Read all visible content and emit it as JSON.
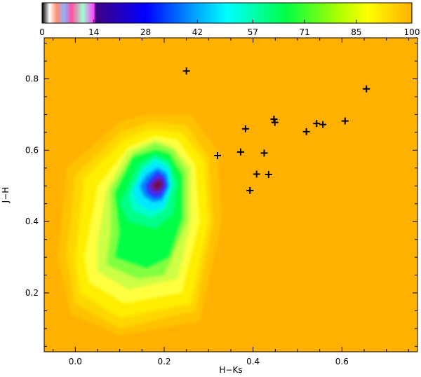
{
  "chart_data": {
    "type": "heatmap",
    "title": "",
    "xlabel": "H−Ks",
    "ylabel": "J−H",
    "xlim": [
      -0.07,
      0.77
    ],
    "ylim": [
      0.035,
      0.915
    ],
    "x_ticks": [
      "0.0",
      "0.2",
      "0.4",
      "0.6"
    ],
    "x_tick_values": [
      0.0,
      0.2,
      0.4,
      0.6
    ],
    "y_ticks": [
      "0.2",
      "0.4",
      "0.6",
      "0.8"
    ],
    "y_tick_values": [
      0.2,
      0.4,
      0.6,
      0.8
    ],
    "colorbar": {
      "range": [
        0,
        100
      ],
      "tick_labels": [
        "0",
        "14",
        "28",
        "42",
        "57",
        "71",
        "85",
        "100"
      ],
      "tick_values": [
        0,
        14,
        28,
        42,
        57,
        71,
        85,
        100
      ],
      "colors": {
        "background": "#ffb000",
        "min": "#000000",
        "blue": "#0000ff",
        "cyan": "#00ffff",
        "green": "#00ff00",
        "yellow": "#ffff00",
        "max": "#ffb000"
      }
    },
    "contour_levels": [
      {
        "level": 96,
        "color": "#ffc200",
        "path": [
          [
            0.1,
            0.68
          ],
          [
            0.16,
            0.7
          ],
          [
            0.26,
            0.7
          ],
          [
            0.32,
            0.6
          ],
          [
            0.33,
            0.4
          ],
          [
            0.28,
            0.12
          ],
          [
            0.1,
            0.08
          ],
          [
            -0.01,
            0.14
          ],
          [
            -0.04,
            0.3
          ],
          [
            -0.02,
            0.55
          ]
        ]
      },
      {
        "level": 92,
        "color": "#ffd700",
        "path": [
          [
            0.1,
            0.65
          ],
          [
            0.17,
            0.68
          ],
          [
            0.25,
            0.67
          ],
          [
            0.3,
            0.58
          ],
          [
            0.31,
            0.4
          ],
          [
            0.27,
            0.15
          ],
          [
            0.1,
            0.1
          ],
          [
            0.0,
            0.17
          ],
          [
            -0.02,
            0.3
          ],
          [
            0.0,
            0.53
          ]
        ]
      },
      {
        "level": 88,
        "color": "#ffee00",
        "path": [
          [
            0.11,
            0.63
          ],
          [
            0.17,
            0.66
          ],
          [
            0.24,
            0.65
          ],
          [
            0.29,
            0.57
          ],
          [
            0.3,
            0.4
          ],
          [
            0.26,
            0.17
          ],
          [
            0.1,
            0.13
          ],
          [
            0.01,
            0.2
          ],
          [
            0.0,
            0.3
          ],
          [
            0.02,
            0.52
          ]
        ]
      },
      {
        "level": 84,
        "color": "#ffff40",
        "path": [
          [
            0.12,
            0.61
          ],
          [
            0.18,
            0.64
          ],
          [
            0.23,
            0.63
          ],
          [
            0.27,
            0.56
          ],
          [
            0.28,
            0.4
          ],
          [
            0.24,
            0.2
          ],
          [
            0.11,
            0.17
          ],
          [
            0.03,
            0.23
          ],
          [
            0.02,
            0.3
          ],
          [
            0.05,
            0.5
          ]
        ]
      },
      {
        "level": 80,
        "color": "#ccff44",
        "path": [
          [
            0.12,
            0.6
          ],
          [
            0.18,
            0.63
          ],
          [
            0.22,
            0.61
          ],
          [
            0.26,
            0.55
          ],
          [
            0.26,
            0.4
          ],
          [
            0.23,
            0.24
          ],
          [
            0.12,
            0.21
          ],
          [
            0.05,
            0.26
          ],
          [
            0.05,
            0.34
          ],
          [
            0.07,
            0.49
          ]
        ]
      },
      {
        "level": 75,
        "color": "#80ff40",
        "path": [
          [
            0.13,
            0.59
          ],
          [
            0.18,
            0.62
          ],
          [
            0.22,
            0.6
          ],
          [
            0.25,
            0.54
          ],
          [
            0.25,
            0.4
          ],
          [
            0.2,
            0.25
          ],
          [
            0.14,
            0.24
          ],
          [
            0.07,
            0.28
          ],
          [
            0.08,
            0.37
          ],
          [
            0.08,
            0.49
          ]
        ]
      },
      {
        "level": 70,
        "color": "#00ff44",
        "path": [
          [
            0.13,
            0.58
          ],
          [
            0.18,
            0.6
          ],
          [
            0.21,
            0.59
          ],
          [
            0.24,
            0.53
          ],
          [
            0.24,
            0.41
          ],
          [
            0.21,
            0.3
          ],
          [
            0.16,
            0.27
          ],
          [
            0.09,
            0.3
          ],
          [
            0.1,
            0.37
          ],
          [
            0.09,
            0.48
          ]
        ]
      },
      {
        "level": 64,
        "color": "#00ff88",
        "path": [
          [
            0.14,
            0.56
          ],
          [
            0.18,
            0.59
          ],
          [
            0.21,
            0.57
          ],
          [
            0.23,
            0.51
          ],
          [
            0.22,
            0.42
          ],
          [
            0.18,
            0.38
          ],
          [
            0.12,
            0.4
          ],
          [
            0.1,
            0.45
          ]
        ]
      },
      {
        "level": 58,
        "color": "#00ffcc",
        "path": [
          [
            0.15,
            0.55
          ],
          [
            0.18,
            0.58
          ],
          [
            0.21,
            0.56
          ],
          [
            0.22,
            0.5
          ],
          [
            0.2,
            0.43
          ],
          [
            0.17,
            0.41
          ],
          [
            0.13,
            0.43
          ],
          [
            0.12,
            0.47
          ]
        ]
      },
      {
        "level": 52,
        "color": "#00e8ff",
        "path": [
          [
            0.15,
            0.54
          ],
          [
            0.18,
            0.57
          ],
          [
            0.21,
            0.55
          ],
          [
            0.215,
            0.5
          ],
          [
            0.2,
            0.44
          ],
          [
            0.17,
            0.43
          ],
          [
            0.14,
            0.45
          ],
          [
            0.13,
            0.49
          ]
        ]
      },
      {
        "level": 44,
        "color": "#0088ff",
        "path": [
          [
            0.16,
            0.53
          ],
          [
            0.185,
            0.55
          ],
          [
            0.205,
            0.535
          ],
          [
            0.21,
            0.5
          ],
          [
            0.195,
            0.46
          ],
          [
            0.175,
            0.455
          ],
          [
            0.155,
            0.47
          ],
          [
            0.145,
            0.5
          ]
        ]
      },
      {
        "level": 34,
        "color": "#3030ff",
        "path": [
          [
            0.17,
            0.52
          ],
          [
            0.185,
            0.54
          ],
          [
            0.2,
            0.525
          ],
          [
            0.205,
            0.5
          ],
          [
            0.193,
            0.47
          ],
          [
            0.177,
            0.467
          ],
          [
            0.163,
            0.48
          ],
          [
            0.158,
            0.5
          ]
        ]
      },
      {
        "level": 24,
        "color": "#6020d0",
        "path": [
          [
            0.175,
            0.515
          ],
          [
            0.187,
            0.528
          ],
          [
            0.198,
            0.517
          ],
          [
            0.2,
            0.5
          ],
          [
            0.19,
            0.48
          ],
          [
            0.178,
            0.478
          ],
          [
            0.168,
            0.488
          ],
          [
            0.166,
            0.502
          ]
        ]
      },
      {
        "level": 14,
        "color": "#701050",
        "path": [
          [
            0.18,
            0.51
          ],
          [
            0.188,
            0.518
          ],
          [
            0.195,
            0.511
          ],
          [
            0.196,
            0.5
          ],
          [
            0.189,
            0.49
          ],
          [
            0.18,
            0.489
          ],
          [
            0.174,
            0.495
          ],
          [
            0.173,
            0.503
          ]
        ]
      }
    ],
    "points": [
      {
        "x": 0.25,
        "y": 0.822
      },
      {
        "x": 0.32,
        "y": 0.585
      },
      {
        "x": 0.372,
        "y": 0.595
      },
      {
        "x": 0.383,
        "y": 0.66
      },
      {
        "x": 0.393,
        "y": 0.487
      },
      {
        "x": 0.408,
        "y": 0.533
      },
      {
        "x": 0.425,
        "y": 0.592
      },
      {
        "x": 0.435,
        "y": 0.532
      },
      {
        "x": 0.447,
        "y": 0.687
      },
      {
        "x": 0.449,
        "y": 0.678
      },
      {
        "x": 0.52,
        "y": 0.652
      },
      {
        "x": 0.543,
        "y": 0.675
      },
      {
        "x": 0.557,
        "y": 0.672
      },
      {
        "x": 0.607,
        "y": 0.682
      },
      {
        "x": 0.655,
        "y": 0.772
      }
    ]
  }
}
